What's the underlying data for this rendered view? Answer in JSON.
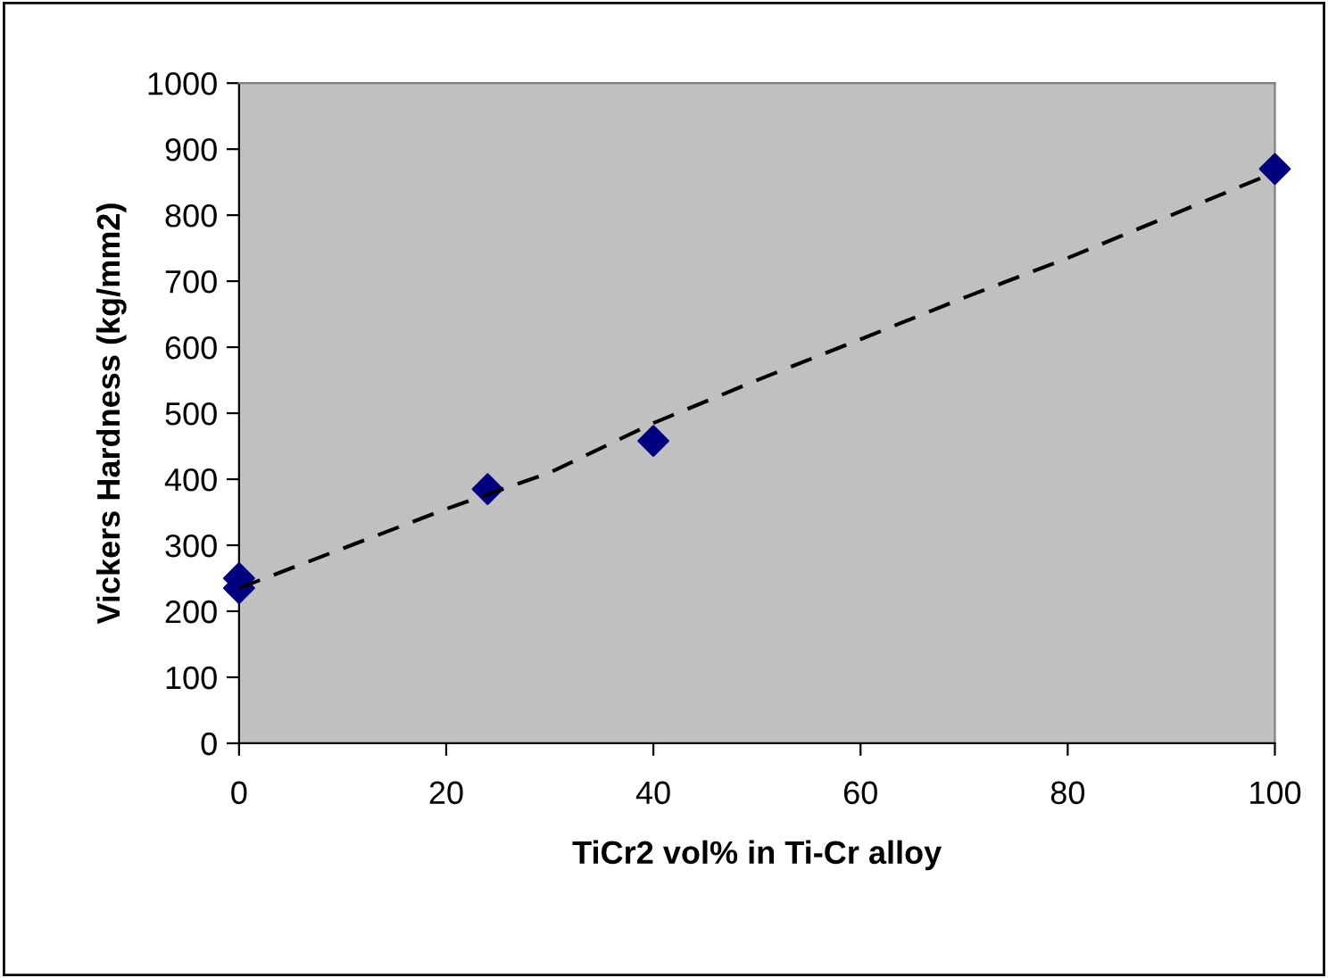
{
  "chart_data": {
    "type": "scatter",
    "xlabel": "TiCr2 vol% in Ti-Cr alloy",
    "ylabel": "Vickers Hardness (kg/mm2)",
    "xlim": [
      0,
      100
    ],
    "xticks": [
      0,
      20,
      40,
      60,
      80,
      100
    ],
    "ylim": [
      0,
      1000
    ],
    "yticks": [
      0,
      100,
      200,
      300,
      400,
      500,
      600,
      700,
      800,
      900,
      1000
    ],
    "grid": false,
    "legend": false,
    "marker": "diamond",
    "series": [
      {
        "color": "#000080",
        "x": [
          0,
          0,
          24,
          40,
          100
        ],
        "values": [
          250,
          235,
          385,
          458,
          870
        ]
      },
      {
        "type": "line",
        "color": "#000000",
        "line_style": "dashed",
        "marker": "none",
        "x": [
          0,
          10,
          20,
          30,
          40,
          50,
          60,
          70,
          80,
          90,
          100
        ],
        "values": [
          235,
          295,
          355,
          410,
          485,
          550,
          612,
          675,
          735,
          800,
          865
        ]
      }
    ]
  }
}
